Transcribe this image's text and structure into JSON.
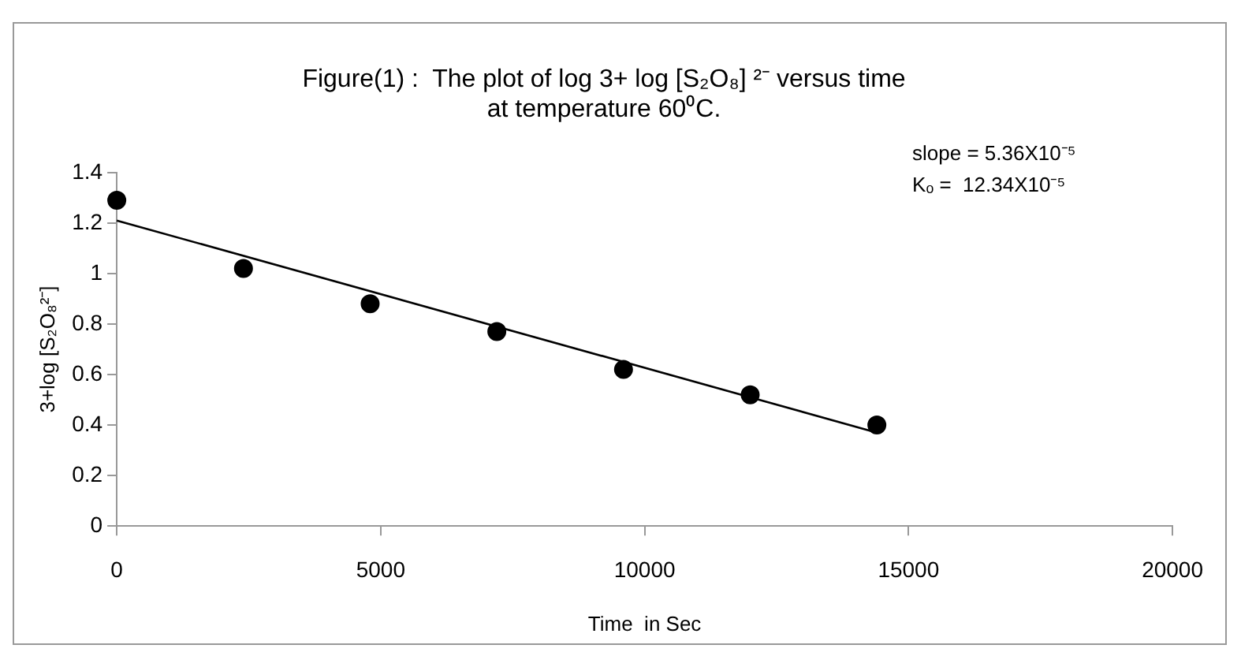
{
  "chart_data": {
    "type": "scatter",
    "title": "Figure(1) :  The plot of log 3+ log [S₂O₈] ²⁻ versus time\nat temperature 60⁰C.",
    "xlabel": "Time  in Sec",
    "ylabel": "3+log [S₂O₈²⁻]",
    "annotations": [
      "slope = 5.36X10⁻⁵",
      "Kₒ =  12.34X10⁻⁵"
    ],
    "series": [
      {
        "color": "#000000",
        "marker": "circle",
        "x": [
          0,
          2400,
          4800,
          7200,
          9600,
          12000,
          14400
        ],
        "values": [
          1.29,
          1.02,
          0.88,
          0.77,
          0.62,
          0.52,
          0.4
        ]
      },
      {
        "type": "line",
        "color": "#000000",
        "marker": "none",
        "x": [
          0,
          14400
        ],
        "values": [
          1.21,
          0.37
        ]
      }
    ],
    "xlim": [
      0,
      20000
    ],
    "xticks": [
      0,
      5000,
      10000,
      15000,
      20000
    ],
    "ylim": [
      0,
      1.4
    ],
    "yticks": [
      0,
      0.2,
      0.4,
      0.6,
      0.8,
      1,
      1.2,
      1.4
    ],
    "grid": false,
    "legend": false
  }
}
